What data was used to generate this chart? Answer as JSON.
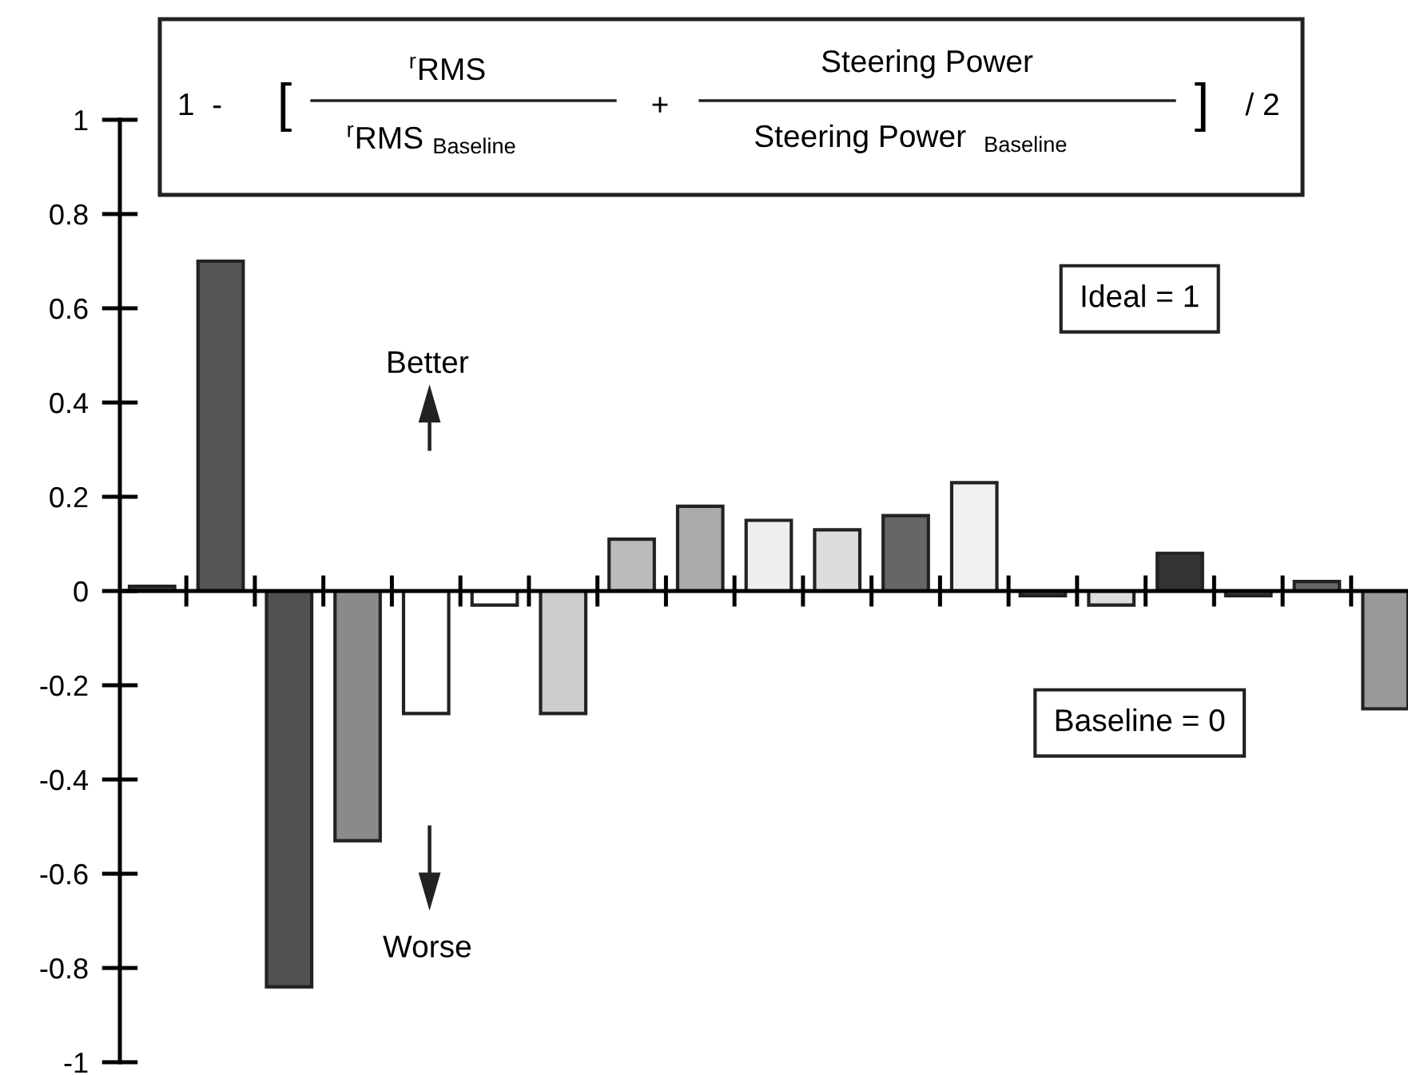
{
  "chart_data": {
    "type": "bar",
    "categories": [
      null,
      null,
      null,
      null,
      null,
      null,
      null,
      null,
      null,
      null,
      null,
      null,
      null,
      null,
      null,
      null,
      null,
      null,
      null
    ],
    "values": [
      0.01,
      0.7,
      -0.84,
      -0.53,
      -0.26,
      -0.03,
      -0.26,
      0.11,
      0.18,
      0.15,
      0.13,
      0.16,
      0.23,
      -0.01,
      -0.03,
      0.08,
      -0.01,
      0.02,
      -0.25
    ],
    "colors": [
      "#444444",
      "#555555",
      "#505050",
      "#8a8a8a",
      "#ffffff",
      "#ffffff",
      "#cccccc",
      "#bbbbbb",
      "#aaaaaa",
      "#eeeeee",
      "#dddddd",
      "#666666",
      "#f0f0f0",
      "#444444",
      "#dddddd",
      "#333333",
      "#444444",
      "#666666",
      "#999999"
    ],
    "ylim": [
      -1,
      1
    ],
    "yticks": [
      -1,
      -0.8,
      -0.6,
      -0.4,
      -0.2,
      0,
      0.2,
      0.4,
      0.6,
      0.8,
      1
    ],
    "legend": false,
    "annotations": [
      "1  -",
      "[",
      "$^{r}$RMS",
      "$^{r}$RMS $_{Baseline}$",
      "+",
      "Steering Power",
      "Steering Power  $_{Baseline}$",
      "]",
      "/ 2",
      "Ideal = 1",
      "Baseline = 0",
      "Better",
      "Worse"
    ]
  }
}
